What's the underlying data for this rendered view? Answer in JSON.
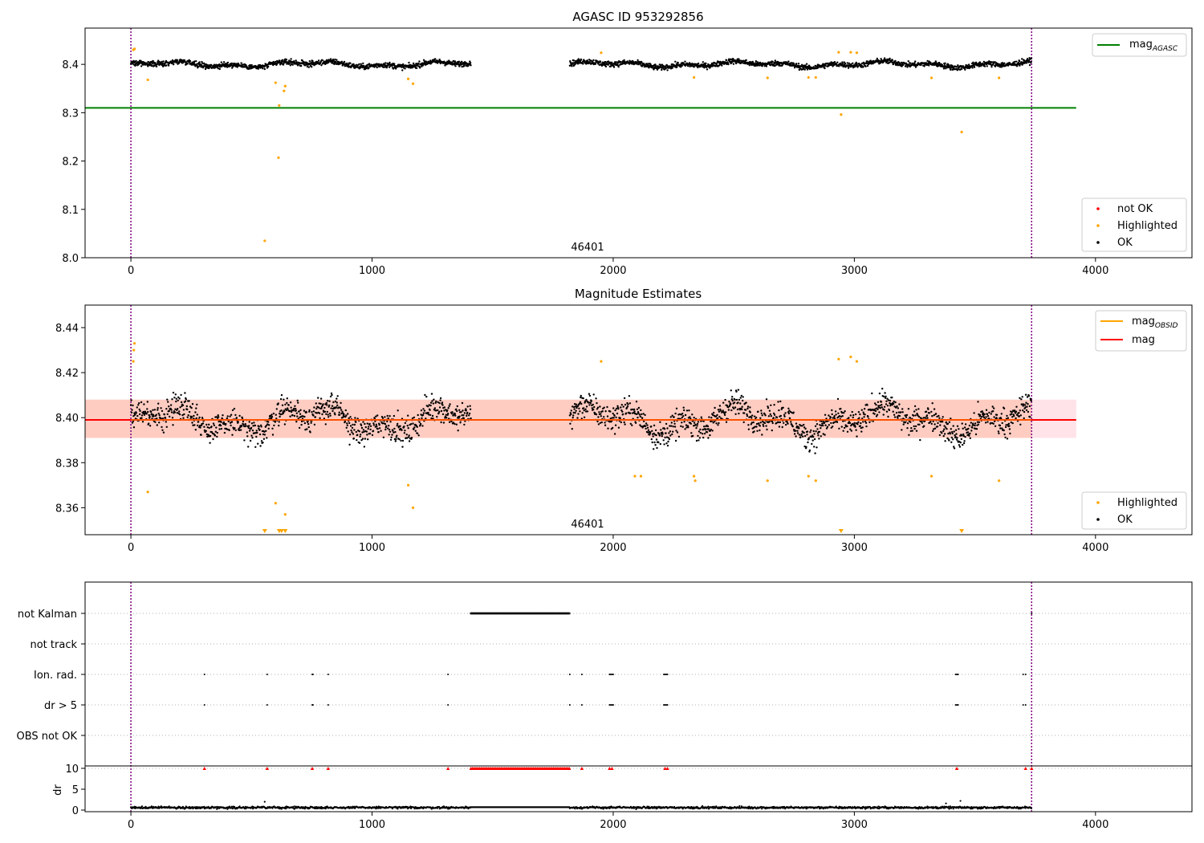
{
  "colors": {
    "ok": "#000000",
    "highlighted": "#ffa500",
    "not_ok": "#ff0000",
    "mag_agasc": "#008000",
    "mag_obsid": "#ffa500",
    "mag": "#ff0000",
    "band_pink": "#ffc0cb",
    "band_orange": "#ffa07a",
    "edge_marker": "#800080",
    "grid": "#b0b0b0"
  },
  "chart_data": [
    {
      "type": "scatter",
      "title": "AGASC ID 953292856",
      "xlim": [
        -190,
        4400
      ],
      "ylim": [
        8.0,
        8.475
      ],
      "xticks": [
        "0",
        "1000",
        "2000",
        "3000",
        "4000"
      ],
      "yticks": [
        "8.0",
        "8.1",
        "8.2",
        "8.3",
        "8.4"
      ],
      "obsid_label": "46401",
      "obsid_bounds": [
        0,
        3735
      ],
      "legend_upper": [
        "magAGASC"
      ],
      "legend_lower": [
        "not OK",
        "Highlighted",
        "OK"
      ],
      "mag_agasc": 8.31,
      "ok_segments": [
        [
          0,
          1410
        ],
        [
          1820,
          3735
        ]
      ],
      "ok_level": 8.4,
      "highlighted": [
        [
          10,
          8.43
        ],
        [
          15,
          8.432
        ],
        [
          70,
          8.368
        ],
        [
          555,
          8.035
        ],
        [
          600,
          8.362
        ],
        [
          615,
          8.315
        ],
        [
          612,
          8.207
        ],
        [
          635,
          8.345
        ],
        [
          640,
          8.355
        ],
        [
          1150,
          8.37
        ],
        [
          1170,
          8.36
        ],
        [
          1950,
          8.424
        ],
        [
          2335,
          8.373
        ],
        [
          2640,
          8.372
        ],
        [
          2810,
          8.373
        ],
        [
          2840,
          8.373
        ],
        [
          2935,
          8.425
        ],
        [
          2945,
          8.296
        ],
        [
          2985,
          8.425
        ],
        [
          3010,
          8.424
        ],
        [
          3320,
          8.372
        ],
        [
          3445,
          8.26
        ],
        [
          3600,
          8.372
        ]
      ]
    },
    {
      "type": "scatter",
      "title": "Magnitude Estimates",
      "xlim": [
        -190,
        4400
      ],
      "ylim": [
        8.348,
        8.45
      ],
      "xticks": [
        "0",
        "1000",
        "2000",
        "3000",
        "4000"
      ],
      "yticks": [
        "8.36",
        "8.38",
        "8.40",
        "8.42",
        "8.44"
      ],
      "obsid_label": "46401",
      "legend_upper": [
        "magOBSID",
        "mag"
      ],
      "legend_lower": [
        "Highlighted",
        "OK"
      ],
      "mag": 8.399,
      "band": [
        8.391,
        8.408
      ],
      "ok_segments": [
        [
          0,
          1410
        ],
        [
          1820,
          3735
        ]
      ],
      "highlighted": [
        [
          10,
          8.425
        ],
        [
          12,
          8.43
        ],
        [
          15,
          8.433
        ],
        [
          70,
          8.367
        ],
        [
          600,
          8.362
        ],
        [
          640,
          8.357
        ],
        [
          1150,
          8.37
        ],
        [
          1170,
          8.36
        ],
        [
          1950,
          8.425
        ],
        [
          2090,
          8.374
        ],
        [
          2115,
          8.374
        ],
        [
          2335,
          8.374
        ],
        [
          2340,
          8.372
        ],
        [
          2640,
          8.372
        ],
        [
          2810,
          8.374
        ],
        [
          2840,
          8.372
        ],
        [
          2935,
          8.426
        ],
        [
          2985,
          8.427
        ],
        [
          3010,
          8.425
        ],
        [
          3320,
          8.374
        ],
        [
          3600,
          8.372
        ]
      ],
      "below_range": [
        555,
        615,
        625,
        640,
        2945,
        3445
      ]
    },
    {
      "type": "scatter",
      "title": "",
      "xlim": [
        -190,
        4400
      ],
      "xticks": [
        "0",
        "1000",
        "2000",
        "3000",
        "4000"
      ],
      "flag_labels": [
        "not Kalman",
        "not track",
        "Ion. rad.",
        "dr > 5",
        "OBS not OK"
      ],
      "not_kalman_range": [
        1410,
        1820
      ],
      "not_kalman_extra": [
        3735
      ],
      "ion_rad_times": [
        305,
        565,
        752,
        755,
        818,
        1315,
        1820,
        1870,
        1985,
        1990,
        1995,
        2000,
        2210,
        2215,
        2220,
        2225,
        3420,
        3425,
        3430,
        3700,
        3710
      ],
      "dr_gt5_times": [
        305,
        565,
        752,
        755,
        818,
        1315,
        1820,
        1870,
        1985,
        1990,
        1995,
        2000,
        2210,
        2215,
        2220,
        2225,
        3420,
        3425,
        3430,
        3700,
        3710
      ],
      "dr": {
        "ylabel": "dr",
        "yticks": [
          "0",
          "5",
          "10"
        ],
        "ylim": [
          -1,
          11
        ],
        "capped_value": 10,
        "capped_times": [
          305,
          565,
          752,
          818,
          1315,
          1870,
          1985,
          1995,
          2215,
          2225,
          3425,
          3710,
          3735
        ],
        "capped_range": [
          1410,
          1820
        ],
        "baseline": 0.6,
        "outliers": [
          [
            555,
            2.0
          ],
          [
            3380,
            1.6
          ],
          [
            3440,
            2.2
          ]
        ]
      }
    }
  ]
}
